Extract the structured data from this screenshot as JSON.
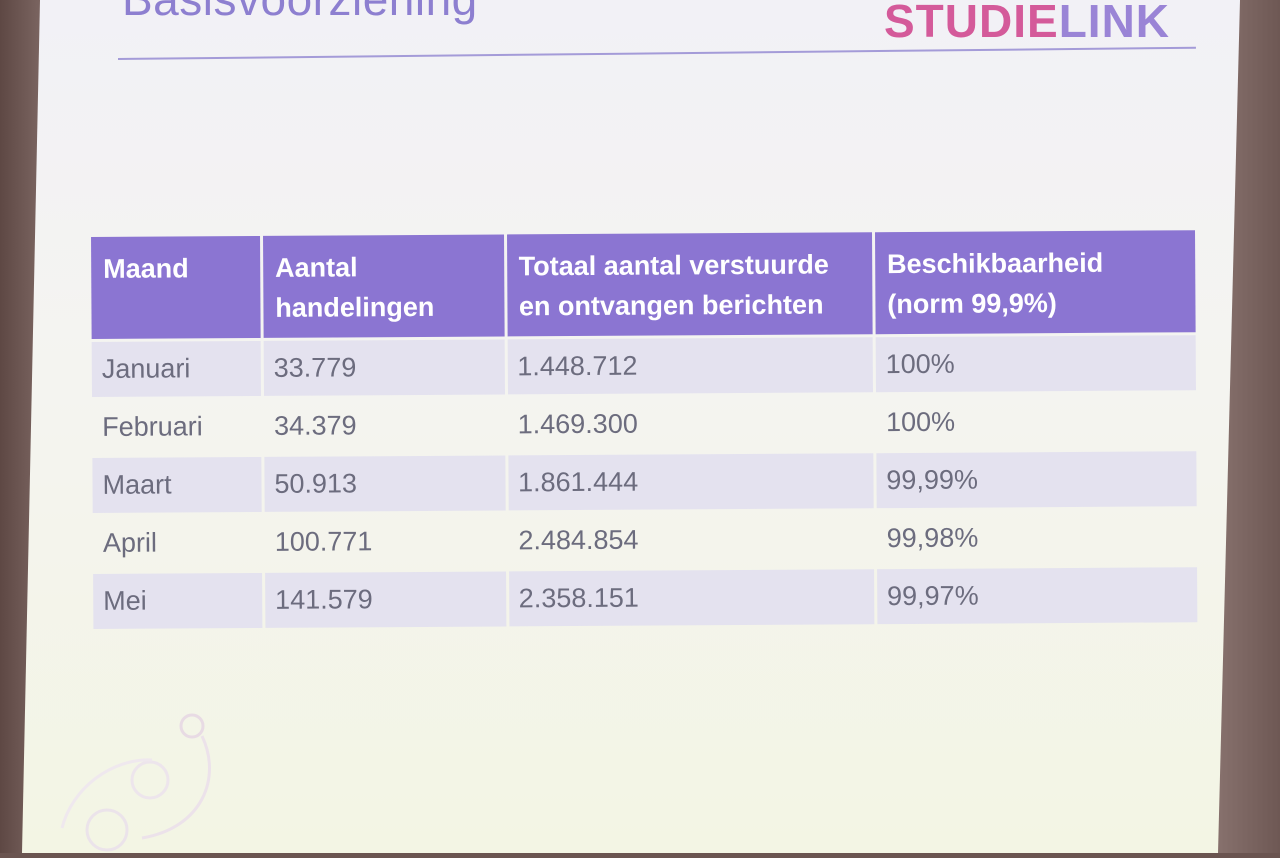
{
  "slide": {
    "title": "Basisvoorziening",
    "logo_part1": "STUDIE",
    "logo_part2": "LINK"
  },
  "table": {
    "headers": [
      [
        "Maand"
      ],
      [
        "Aantal",
        "handelingen"
      ],
      [
        "Totaal aantal verstuurde",
        "en ontvangen berichten"
      ],
      [
        "Beschikbaarheid",
        "(norm 99,9%)"
      ]
    ],
    "rows": [
      [
        "Januari",
        "33.779",
        "1.448.712",
        "100%"
      ],
      [
        "Februari",
        "34.379",
        "1.469.300",
        "100%"
      ],
      [
        "Maart",
        "50.913",
        "1.861.444",
        "99,99%"
      ],
      [
        "April",
        "100.771",
        "2.484.854",
        "99,98%"
      ],
      [
        "Mei",
        "141.579",
        "2.358.151",
        "99,97%"
      ]
    ]
  }
}
